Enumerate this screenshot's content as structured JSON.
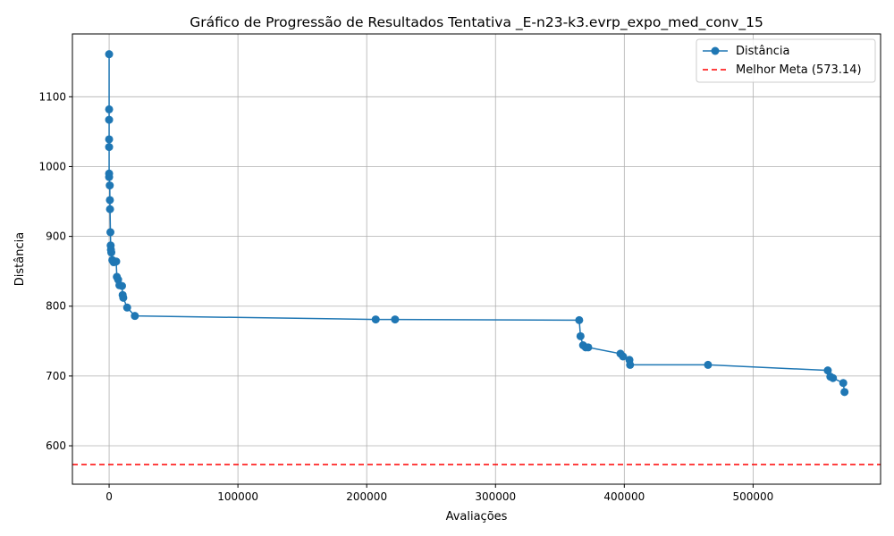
{
  "chart_data": {
    "type": "line",
    "title": "Gráfico de Progressão de Resultados Tentativa _E-n23-k3.evrp_expo_med_conv_15",
    "xlabel": "Avaliações",
    "ylabel": "Distância",
    "xlim": [
      -28500,
      599000
    ],
    "ylim": [
      545,
      1190
    ],
    "xticks": [
      0,
      100000,
      200000,
      300000,
      400000,
      500000
    ],
    "xtick_labels": [
      "0",
      "100000",
      "200000",
      "300000",
      "400000",
      "500000"
    ],
    "yticks": [
      600,
      700,
      800,
      900,
      1000,
      1100
    ],
    "ytick_labels": [
      "600",
      "700",
      "800",
      "900",
      "1000",
      "1100"
    ],
    "grid": true,
    "legend_position": "top-right",
    "series": [
      {
        "name": "Distância",
        "color": "#1f77b4",
        "marker": "circle",
        "x": [
          0,
          0,
          0,
          0,
          0,
          0,
          0,
          500,
          600,
          700,
          1000,
          1200,
          1400,
          1700,
          2500,
          3500,
          5500,
          6000,
          7000,
          8000,
          10000,
          10500,
          11000,
          14000,
          20000,
          207000,
          222000,
          365000,
          366000,
          368000,
          370000,
          372000,
          397000,
          399000,
          404000,
          404500,
          465000,
          558000,
          560000,
          562000,
          570000,
          571000
        ],
        "y": [
          1161,
          1082,
          1067,
          1039,
          1028,
          990,
          985,
          973,
          952,
          939,
          906,
          887,
          881,
          877,
          866,
          863,
          864,
          842,
          838,
          830,
          829,
          816,
          812,
          798,
          786,
          781,
          781,
          780,
          757,
          744,
          741,
          741,
          732,
          728,
          723,
          716,
          716,
          708,
          699,
          697,
          690,
          677
        ]
      }
    ],
    "reference_line": {
      "name": "Melhor Meta (573.14)",
      "y": 573.14,
      "color": "#ff0000",
      "style": "dashed"
    }
  }
}
